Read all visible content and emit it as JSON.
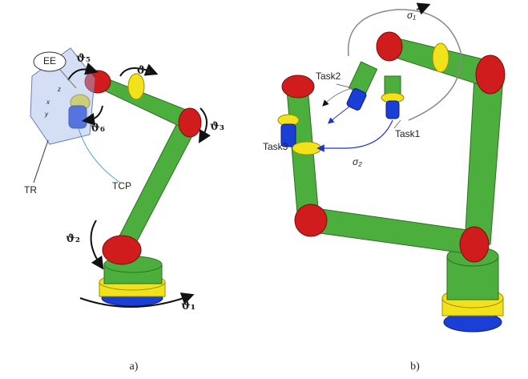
{
  "panel_a": {
    "labels": {
      "ee": "EE",
      "theta5": "ϑ₅",
      "theta4": "ϑ₄",
      "theta3": "ϑ₃",
      "theta6": "ϑ₆",
      "tcp": "TCP",
      "tr": "TR",
      "theta2": "ϑ₂",
      "theta1": "ϑ₁",
      "z": "z",
      "x": "x",
      "y": "y"
    },
    "caption": "a)"
  },
  "panel_b": {
    "labels": {
      "sigma1": "σ₁",
      "task2": "Task2",
      "task1": "Task1",
      "task3": "Task3",
      "sigma2": "σ₂"
    },
    "caption": "b)"
  }
}
